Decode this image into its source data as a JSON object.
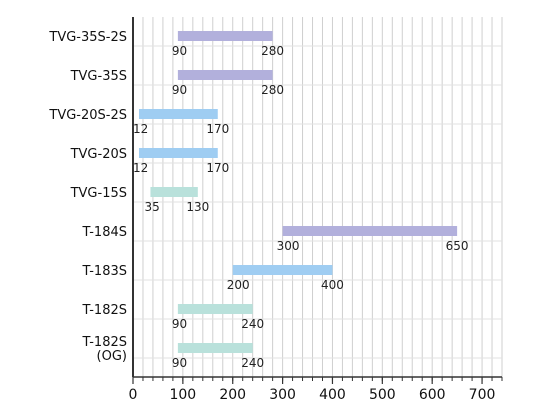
{
  "chart_data": {
    "type": "bar",
    "orientation": "horizontal-range",
    "categories": [
      {
        "lines": [
          "TVG-35S-2S"
        ]
      },
      {
        "lines": [
          "TVG-35S"
        ]
      },
      {
        "lines": [
          "TVG-20S-2S"
        ]
      },
      {
        "lines": [
          "TVG-20S"
        ]
      },
      {
        "lines": [
          "TVG-15S"
        ]
      },
      {
        "lines": [
          "T-184S"
        ]
      },
      {
        "lines": [
          "T-183S"
        ]
      },
      {
        "lines": [
          "T-182S"
        ]
      },
      {
        "lines": [
          "T-182S",
          "(OG)"
        ]
      }
    ],
    "ranges": [
      {
        "start": 90,
        "end": 280,
        "start_label": "90",
        "end_label": "280",
        "color": "#b2b0dc"
      },
      {
        "start": 90,
        "end": 280,
        "start_label": "90",
        "end_label": "280",
        "color": "#b2b0dc"
      },
      {
        "start": 12,
        "end": 170,
        "start_label": "12",
        "end_label": "170",
        "color": "#9fcdf2"
      },
      {
        "start": 12,
        "end": 170,
        "start_label": "12",
        "end_label": "170",
        "color": "#9fcdf2"
      },
      {
        "start": 35,
        "end": 130,
        "start_label": "35",
        "end_label": "130",
        "color": "#b9e1db"
      },
      {
        "start": 300,
        "end": 650,
        "start_label": "300",
        "end_label": "650",
        "color": "#b2b0dc"
      },
      {
        "start": 200,
        "end": 400,
        "start_label": "200",
        "end_label": "400",
        "color": "#9fcdf2"
      },
      {
        "start": 90,
        "end": 240,
        "start_label": "90",
        "end_label": "240",
        "color": "#b9e1db"
      },
      {
        "start": 90,
        "end": 240,
        "start_label": "90",
        "end_label": "240",
        "color": "#b9e1db"
      }
    ],
    "xlim": [
      0,
      740
    ],
    "xticks": [
      0,
      100,
      200,
      300,
      400,
      500,
      600,
      700
    ],
    "minor_tick_step": 20,
    "grid": true,
    "colors": {
      "grid": "#cfcfcf",
      "axis": "#333333"
    }
  }
}
